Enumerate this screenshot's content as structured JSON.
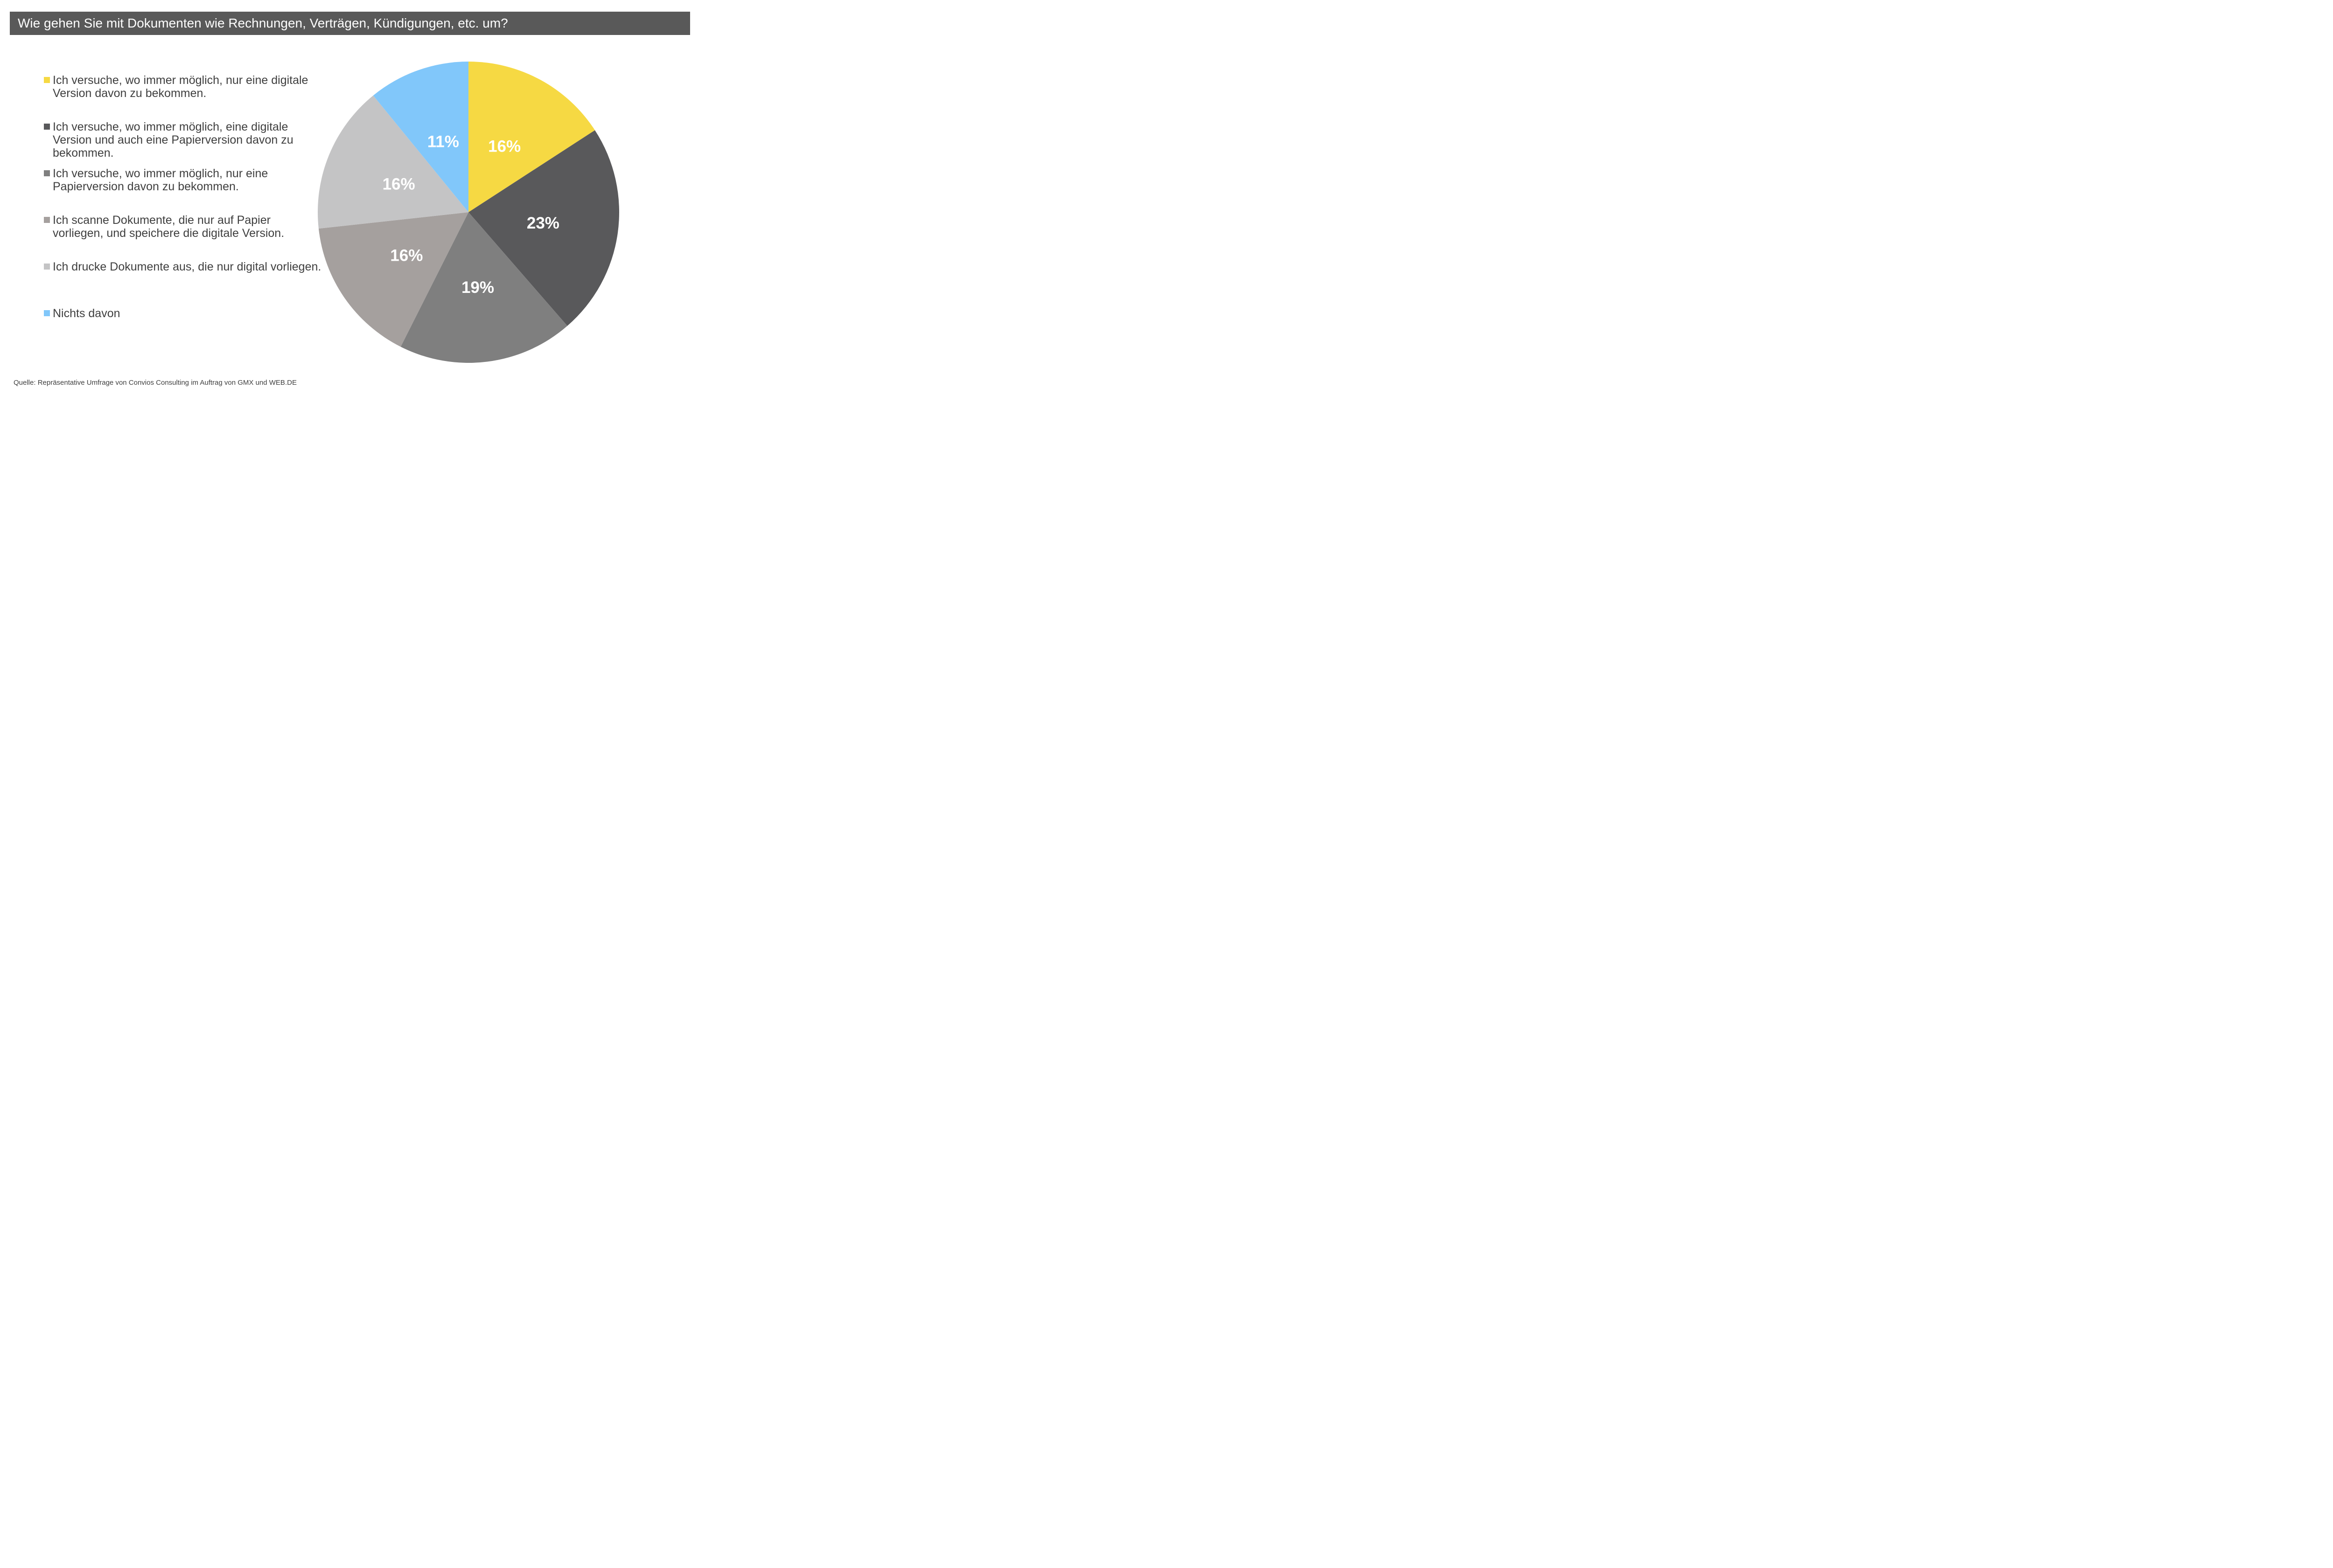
{
  "title_bar": {
    "text": "Wie gehen Sie mit Dokumenten wie Rechnungen, Verträgen, Kündigungen, etc. um?",
    "background_color": "#595959",
    "text_color": "#FFFFFF"
  },
  "source": {
    "text": "Quelle: Repräsentative Umfrage von Convios Consulting im Auftrag von GMX und WEB.DE"
  },
  "chart_data": {
    "type": "pie",
    "title": "Wie gehen Sie mit Dokumenten wie Rechnungen, Verträgen, Kündigungen, etc. um?",
    "direction": "clockwise",
    "start_angle_deg": 0,
    "legend_position": "left",
    "slice_label_color": "#FFFFFF",
    "slice_label_radius_fraction": 0.5,
    "slices": [
      {
        "label": "Ich versuche, wo immer möglich, nur eine digitale Version davon zu bekommen.",
        "value_pct": 16,
        "display_value": "16%",
        "color": "#F6D943"
      },
      {
        "label": "Ich versuche, wo immer möglich, eine digitale Version und auch eine Papierversion davon zu bekommen.",
        "value_pct": 23,
        "display_value": "23%",
        "color": "#59595B"
      },
      {
        "label": "Ich versuche, wo immer möglich, nur eine Papierversion davon zu bekommen.",
        "value_pct": 19,
        "display_value": "19%",
        "color": "#7F7F7F"
      },
      {
        "label": "Ich scanne Dokumente, die nur auf Papier vorliegen, und speichere die digitale Version.",
        "value_pct": 16,
        "display_value": "16%",
        "color": "#A5A09E"
      },
      {
        "label": "Ich drucke Dokumente aus, die nur digital vorliegen.",
        "value_pct": 16,
        "display_value": "16%",
        "color": "#C4C4C5"
      },
      {
        "label": "Nichts davon",
        "value_pct": 11,
        "display_value": "11%",
        "color": "#81C7FA"
      }
    ]
  }
}
